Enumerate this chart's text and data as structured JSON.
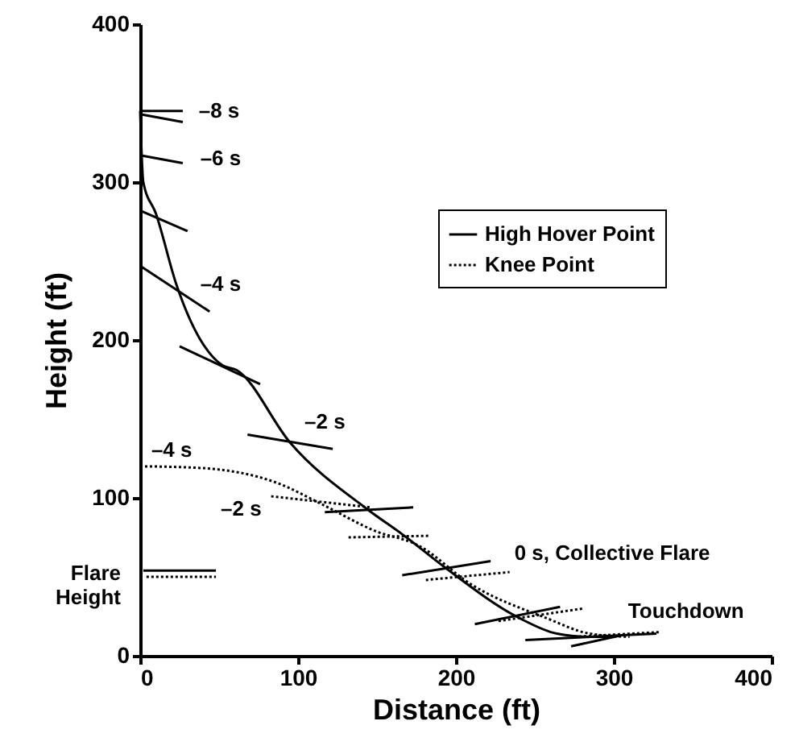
{
  "chart_data": {
    "type": "line",
    "xlabel": "Distance (ft)",
    "ylabel": "Height (ft)",
    "xlim": [
      0,
      400
    ],
    "ylim": [
      0,
      400
    ],
    "xticks": [
      0,
      100,
      200,
      300,
      400
    ],
    "yticks": [
      0,
      100,
      200,
      300,
      400
    ],
    "grid": false,
    "legend": "top right",
    "series": [
      {
        "name": "High Hover Point",
        "color": "#000000",
        "line_style": "solid",
        "x": [
          0,
          2,
          10,
          23,
          52,
          61,
          95,
          145,
          166,
          193,
          240,
          264,
          285,
          300
        ],
        "values": [
          345,
          300,
          280,
          235,
          184,
          181,
          135,
          92,
          77,
          56,
          24,
          14,
          12,
          12
        ]
      },
      {
        "name": "Knee Point",
        "color": "#000000",
        "line_style": "dotted",
        "x": [
          0,
          37,
          88,
          115,
          149,
          176,
          210,
          257,
          285,
          310
        ],
        "values": [
          120,
          119,
          109,
          96,
          79,
          70,
          45,
          24,
          14,
          12
        ]
      },
      {
        "color": "#000000",
        "line_style": "solid",
        "x": [
          0,
          27
        ],
        "values": [
          345,
          345
        ]
      },
      {
        "color": "#000000",
        "line_style": "solid",
        "x": [
          0,
          27
        ],
        "values": [
          343,
          338
        ]
      },
      {
        "color": "#000000",
        "line_style": "solid",
        "x": [
          0,
          27
        ],
        "values": [
          317,
          312
        ]
      },
      {
        "color": "#000000",
        "line_style": "solid",
        "x": [
          0,
          30
        ],
        "values": [
          282,
          269
        ]
      },
      {
        "color": "#000000",
        "line_style": "solid",
        "x": [
          0,
          44
        ],
        "values": [
          247,
          218
        ]
      },
      {
        "color": "#000000",
        "line_style": "solid",
        "x": [
          25,
          76
        ],
        "values": [
          196,
          172
        ]
      },
      {
        "color": "#000000",
        "line_style": "solid",
        "x": [
          68,
          122
        ],
        "values": [
          140,
          131
        ]
      },
      {
        "color": "#000000",
        "line_style": "solid",
        "x": [
          117,
          173
        ],
        "values": [
          91,
          94
        ]
      },
      {
        "color": "#000000",
        "line_style": "solid",
        "x": [
          166,
          222
        ],
        "values": [
          51,
          60
        ]
      },
      {
        "color": "#000000",
        "line_style": "solid",
        "x": [
          212,
          266
        ],
        "values": [
          20,
          31
        ]
      },
      {
        "color": "#000000",
        "line_style": "solid",
        "x": [
          244,
          327
        ],
        "values": [
          10,
          14
        ]
      },
      {
        "color": "#000000",
        "line_style": "solid",
        "x": [
          273,
          305
        ],
        "values": [
          6,
          13
        ]
      },
      {
        "color": "#000000",
        "line_style": "dotted",
        "x": [
          83,
          146
        ],
        "values": [
          101,
          94
        ]
      },
      {
        "color": "#000000",
        "line_style": "dotted",
        "x": [
          132,
          184
        ],
        "values": [
          75,
          76
        ]
      },
      {
        "color": "#000000",
        "line_style": "dotted",
        "x": [
          181,
          234
        ],
        "values": [
          48,
          53
        ]
      },
      {
        "color": "#000000",
        "line_style": "dotted",
        "x": [
          227,
          281
        ],
        "values": [
          22,
          30
        ]
      },
      {
        "color": "#000000",
        "line_style": "dotted",
        "x": [
          275,
          329
        ],
        "values": [
          12,
          15
        ]
      },
      {
        "color": "#000000",
        "line_style": "solid",
        "x": [
          2,
          48
        ],
        "values": [
          54,
          54
        ]
      },
      {
        "color": "#000000",
        "line_style": "dotted",
        "x": [
          4,
          48
        ],
        "values": [
          50,
          50
        ]
      }
    ],
    "annotations": [
      "–8 s",
      "–6 s",
      "–4 s",
      "–2 s",
      "–4 s",
      "–2 s",
      "0 s, Collective Flare",
      "Touchdown",
      "Flare Height"
    ]
  }
}
